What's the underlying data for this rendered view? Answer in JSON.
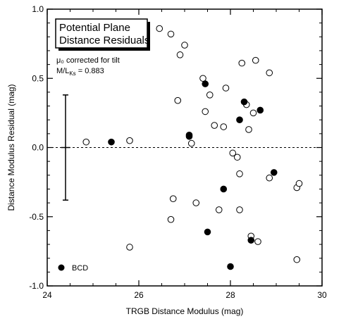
{
  "chart_data": {
    "type": "scatter",
    "title": "Potential Plane\nDistance Residuals",
    "title_lines": [
      "Potential Plane",
      "Distance Residuals"
    ],
    "annotation_line1": "μ₀ corrected for tilt",
    "annotation_line2": "M/L",
    "annotation_line2_sub": "Ks",
    "annotation_line2_value": " = 0.883",
    "xlabel": "TRGB Distance Modulus (mag)",
    "ylabel": "Distance Modulus Residual (mag)",
    "xlim": [
      24,
      30
    ],
    "ylim": [
      -1.0,
      1.0
    ],
    "xticks": [
      24,
      26,
      28,
      30
    ],
    "yticks": [
      -1.0,
      -0.5,
      0.0,
      0.5,
      1.0
    ],
    "xtick_labels": [
      "24",
      "26",
      "28",
      "30"
    ],
    "ytick_labels": [
      "-1.0",
      "-0.5",
      "0.0",
      "0.5",
      "1.0"
    ],
    "zero_line": 0.0,
    "error_bar": {
      "x": 24.4,
      "y": 0.0,
      "yerr": 0.38,
      "xerr": 0.1
    },
    "legend": {
      "label": "BCD",
      "placement": "bottom-left"
    },
    "series": [
      {
        "filled": false,
        "points": [
          {
            "x": 24.85,
            "y": 0.04
          },
          {
            "x": 25.8,
            "y": 0.05
          },
          {
            "x": 25.8,
            "y": -0.72
          },
          {
            "x": 26.45,
            "y": 0.86
          },
          {
            "x": 26.7,
            "y": 0.82
          },
          {
            "x": 27.0,
            "y": 0.74
          },
          {
            "x": 26.9,
            "y": 0.67
          },
          {
            "x": 26.85,
            "y": 0.34
          },
          {
            "x": 27.15,
            "y": 0.03
          },
          {
            "x": 26.75,
            "y": -0.37
          },
          {
            "x": 26.7,
            "y": -0.52
          },
          {
            "x": 27.25,
            "y": -0.4
          },
          {
            "x": 27.4,
            "y": 0.5
          },
          {
            "x": 27.55,
            "y": 0.38
          },
          {
            "x": 27.45,
            "y": 0.26
          },
          {
            "x": 27.65,
            "y": 0.16
          },
          {
            "x": 27.85,
            "y": 0.15
          },
          {
            "x": 27.9,
            "y": 0.43
          },
          {
            "x": 27.75,
            "y": -0.45
          },
          {
            "x": 28.05,
            "y": -0.04
          },
          {
            "x": 28.15,
            "y": -0.07
          },
          {
            "x": 28.2,
            "y": -0.19
          },
          {
            "x": 28.2,
            "y": -0.45
          },
          {
            "x": 28.25,
            "y": 0.61
          },
          {
            "x": 28.35,
            "y": 0.31
          },
          {
            "x": 28.4,
            "y": 0.13
          },
          {
            "x": 28.5,
            "y": 0.25
          },
          {
            "x": 28.55,
            "y": 0.63
          },
          {
            "x": 28.85,
            "y": 0.54
          },
          {
            "x": 28.85,
            "y": -0.22
          },
          {
            "x": 28.45,
            "y": -0.64
          },
          {
            "x": 28.6,
            "y": -0.68
          },
          {
            "x": 29.45,
            "y": -0.29
          },
          {
            "x": 29.5,
            "y": -0.26
          },
          {
            "x": 29.45,
            "y": -0.81
          }
        ]
      },
      {
        "name": "BCD",
        "filled": true,
        "points": [
          {
            "x": 25.4,
            "y": 0.04
          },
          {
            "x": 27.1,
            "y": 0.09
          },
          {
            "x": 27.1,
            "y": 0.08
          },
          {
            "x": 27.45,
            "y": 0.46
          },
          {
            "x": 27.85,
            "y": -0.3
          },
          {
            "x": 27.5,
            "y": -0.61
          },
          {
            "x": 28.2,
            "y": 0.2
          },
          {
            "x": 28.3,
            "y": 0.33
          },
          {
            "x": 28.65,
            "y": 0.27
          },
          {
            "x": 28.95,
            "y": -0.18
          },
          {
            "x": 28.45,
            "y": -0.67
          },
          {
            "x": 28.0,
            "y": -0.86
          }
        ]
      }
    ]
  }
}
